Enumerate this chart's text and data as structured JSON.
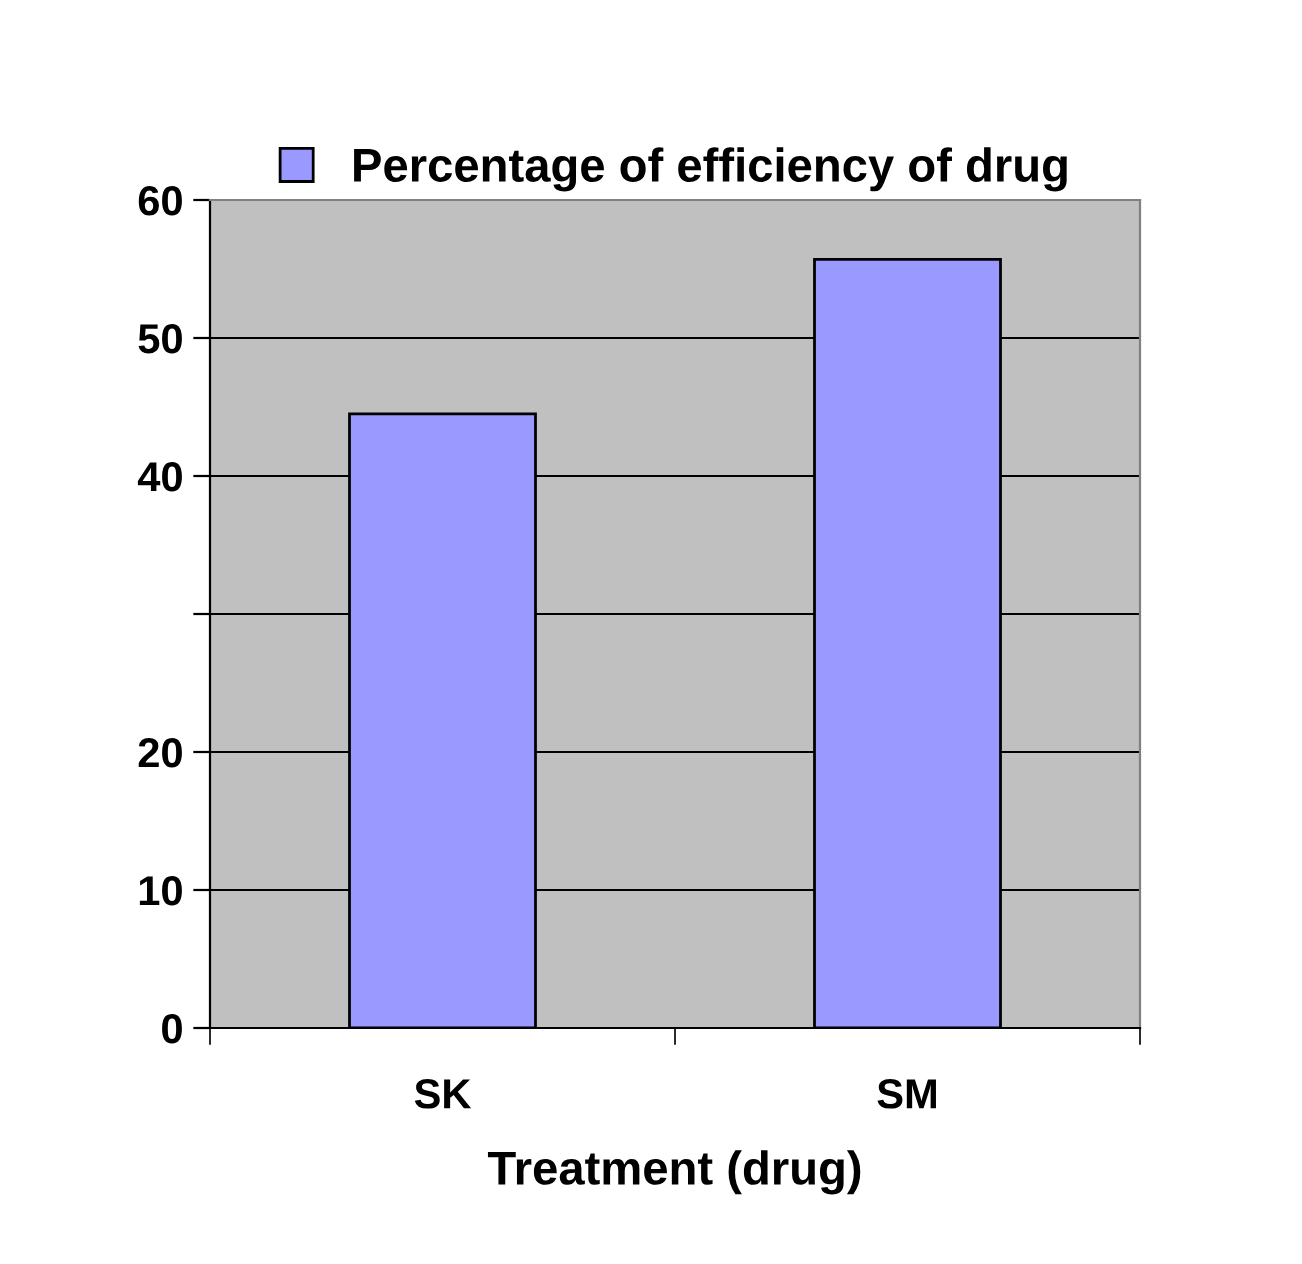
{
  "chart_data": {
    "type": "bar",
    "xlabel": "Treatment (drug)",
    "categories": [
      "SK",
      "SM"
    ],
    "series": [
      {
        "name": "Percentage of efficiency of drug",
        "color": "#9999ff",
        "values": [
          44.5,
          55.7
        ]
      }
    ],
    "ylim": [
      0,
      60
    ],
    "yticks": [
      0,
      10,
      20,
      {
        "value": 30,
        "label": null
      },
      40,
      50,
      60
    ],
    "grid": "y",
    "legend": "top"
  }
}
